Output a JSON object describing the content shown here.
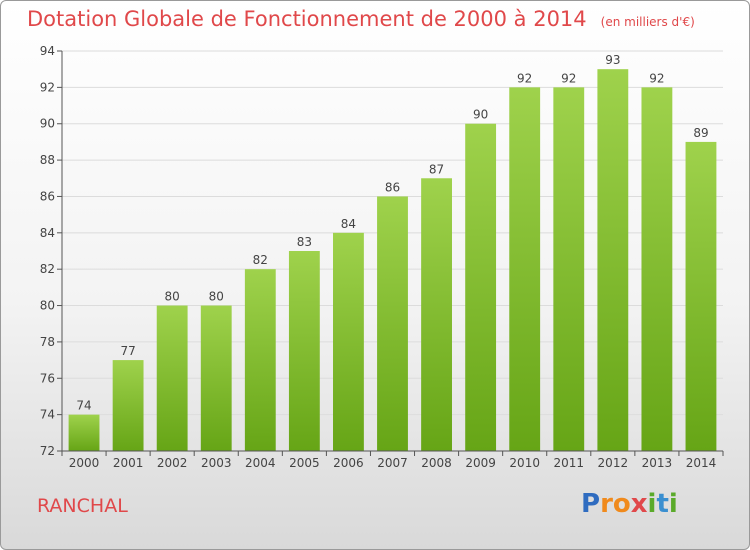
{
  "header": {
    "title": "Dotation Globale de Fonctionnement de 2000 à 2014",
    "subtitle": "(en milliers d'€)"
  },
  "commune": "RANCHAL",
  "logo": {
    "text": "Proxiti"
  },
  "colors": {
    "bar_top": "#9fd24c",
    "bar_bottom": "#66a516",
    "title": "#e0484a"
  },
  "chart_data": {
    "type": "bar",
    "title": "Dotation Globale de Fonctionnement de 2000 à 2014",
    "subtitle": "(en milliers d'€)",
    "categories": [
      "2000",
      "2001",
      "2002",
      "2003",
      "2004",
      "2005",
      "2006",
      "2007",
      "2008",
      "2009",
      "2010",
      "2011",
      "2012",
      "2013",
      "2014"
    ],
    "values": [
      74,
      77,
      80,
      80,
      82,
      83,
      84,
      86,
      87,
      90,
      92,
      92,
      93,
      92,
      89
    ],
    "ylim": [
      72,
      94
    ],
    "yticks": [
      72,
      74,
      76,
      78,
      80,
      82,
      84,
      86,
      88,
      90,
      92,
      94
    ],
    "grid": true,
    "legend": "none"
  }
}
